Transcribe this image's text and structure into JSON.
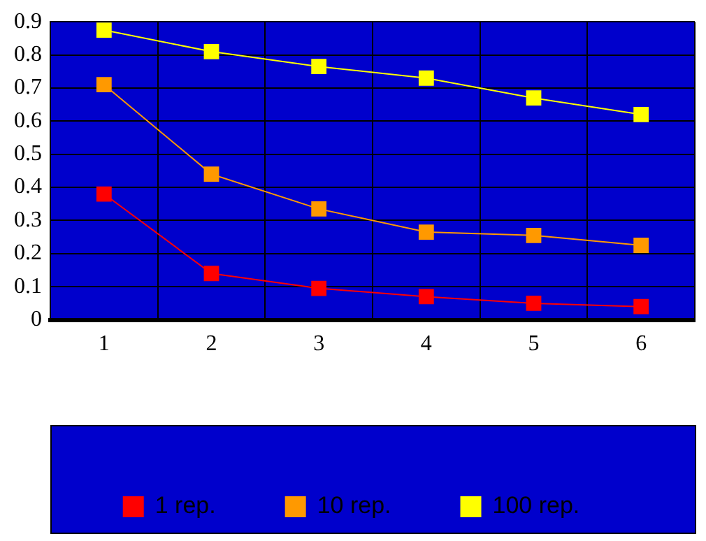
{
  "chart_data": {
    "type": "line",
    "categories": [
      "1",
      "2",
      "3",
      "4",
      "5",
      "6"
    ],
    "series": [
      {
        "name": "1 rep.",
        "color": "#ff0000",
        "values": [
          0.38,
          0.14,
          0.095,
          0.07,
          0.05,
          0.04
        ]
      },
      {
        "name": "10 rep.",
        "color": "#ff9900",
        "values": [
          0.71,
          0.44,
          0.335,
          0.265,
          0.255,
          0.225
        ]
      },
      {
        "name": "100 rep.",
        "color": "#ffff00",
        "values": [
          0.875,
          0.81,
          0.765,
          0.73,
          0.67,
          0.62
        ]
      }
    ],
    "ylim": [
      0,
      0.9
    ],
    "yticks": [
      0,
      0.1,
      0.2,
      0.3,
      0.4,
      0.5,
      0.6,
      0.7,
      0.8,
      0.9
    ],
    "grid": true,
    "legend": "bottom",
    "marker": "square",
    "line_style": "solid"
  }
}
